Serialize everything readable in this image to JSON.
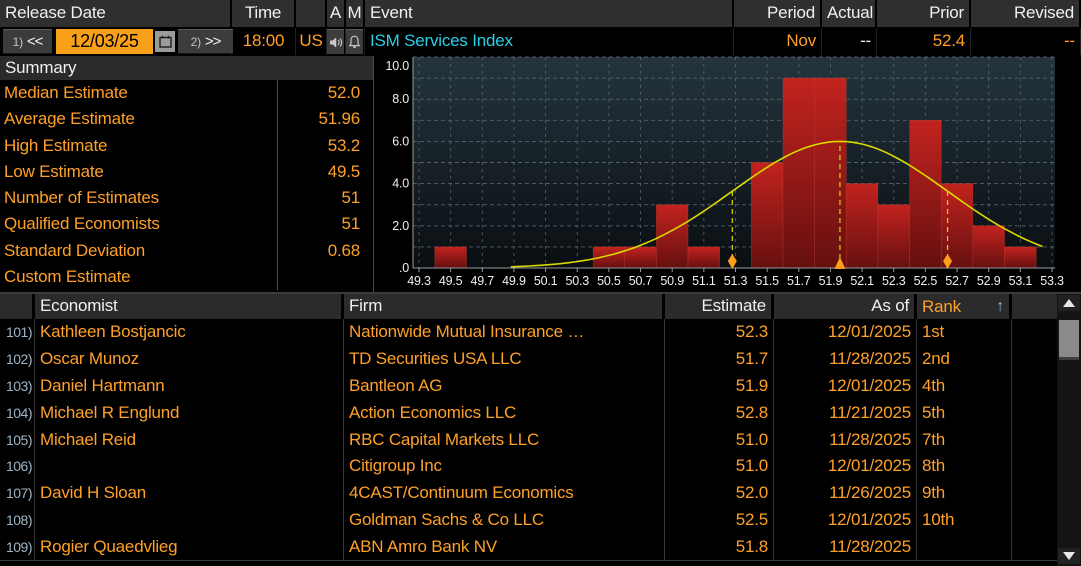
{
  "colors": {
    "orange": "#ffa028",
    "date_field_bg": "#f9a01b",
    "cyan": "#27d0e8",
    "row_number": "#9fb4c4",
    "header_bg": "#2f2f2f",
    "button_bg": "#3c3c3c",
    "bar_top": "#c2231e",
    "bar_bottom": "#661010",
    "curve_yellow": "#d9d900",
    "marker_orange": "#ff9f1b",
    "grid_gray": "#5f6d77",
    "plot_bg_top": "#24343e",
    "plot_bg_bottom": "#0a0e11",
    "axis_gray": "#959b9e"
  },
  "top": {
    "headers": {
      "release_date": "Release Date",
      "time": "Time",
      "a": "A",
      "m": "M",
      "event": "Event",
      "period": "Period",
      "actual": "Actual",
      "prior": "Prior",
      "revised": "Revised"
    },
    "nav": {
      "key1": "1)",
      "prev": "<<",
      "date": "12/03/25",
      "key2": "2)",
      "next": ">>"
    },
    "values": {
      "time": "18:00",
      "country": "US",
      "event": "ISM Services Index",
      "period": "Nov",
      "actual": "--",
      "prior": "52.4",
      "revised": "--"
    }
  },
  "summary": {
    "title": "Summary",
    "rows": [
      {
        "label": "Median Estimate",
        "value": "52.0"
      },
      {
        "label": "Average Estimate",
        "value": "51.96"
      },
      {
        "label": "High Estimate",
        "value": "53.2"
      },
      {
        "label": "Low Estimate",
        "value": "49.5"
      },
      {
        "label": "Number of Estimates",
        "value": "51"
      },
      {
        "label": "Qualified Economists",
        "value": "51"
      },
      {
        "label": "Standard Deviation",
        "value": "0.68"
      },
      {
        "label": "Custom Estimate",
        "value": ""
      }
    ]
  },
  "chart_data": {
    "type": "bar",
    "subtype": "histogram",
    "title": "Estimate distribution histogram",
    "xlim": [
      49.3,
      53.3
    ],
    "ylim": [
      0,
      10
    ],
    "bin_width": 0.2,
    "grid": "dashed",
    "x_ticks": [
      "49.3",
      "49.5",
      "49.7",
      "49.9",
      "50.1",
      "50.3",
      "50.5",
      "50.7",
      "50.9",
      "51.1",
      "51.3",
      "51.5",
      "51.7",
      "51.9",
      "52.1",
      "52.3",
      "52.5",
      "52.7",
      "52.9",
      "53.1",
      "53.3"
    ],
    "y_ticks": [
      {
        "label": "10.0",
        "value": 10
      },
      {
        "label": "8.0",
        "value": 8
      },
      {
        "label": "6.0",
        "value": 6
      },
      {
        "label": "4.0",
        "value": 4
      },
      {
        "label": "2.0",
        "value": 2
      },
      {
        "label": ".0",
        "value": 0
      }
    ],
    "bins": [
      {
        "x": 49.5,
        "count": 1
      },
      {
        "x": 50.5,
        "count": 1
      },
      {
        "x": 50.7,
        "count": 1
      },
      {
        "x": 50.9,
        "count": 3
      },
      {
        "x": 51.1,
        "count": 1
      },
      {
        "x": 51.5,
        "count": 5
      },
      {
        "x": 51.7,
        "count": 9
      },
      {
        "x": 51.9,
        "count": 9
      },
      {
        "x": 52.1,
        "count": 4
      },
      {
        "x": 52.3,
        "count": 3
      },
      {
        "x": 52.5,
        "count": 7
      },
      {
        "x": 52.7,
        "count": 4
      },
      {
        "x": 52.9,
        "count": 2
      },
      {
        "x": 53.1,
        "count": 1
      }
    ],
    "curve": {
      "shape": "normal",
      "mean": 51.96,
      "std": 0.68,
      "peak": 6,
      "x_start": 49.88,
      "x_end": 53.26
    },
    "markers": [
      {
        "x": 51.28,
        "shape": "diamond"
      },
      {
        "x": 51.96,
        "shape": "triangle"
      },
      {
        "x": 52.64,
        "shape": "diamond"
      }
    ]
  },
  "table": {
    "headers": {
      "economist": "Economist",
      "firm": "Firm",
      "estimate": "Estimate",
      "asof": "As of",
      "rank": "Rank",
      "sort_arrow": "↑"
    },
    "rows": [
      {
        "num": "101)",
        "economist": "Kathleen Bostjancic",
        "firm": "Nationwide Mutual Insurance …",
        "estimate": "52.3",
        "asof": "12/01/2025",
        "rank": "1st"
      },
      {
        "num": "102)",
        "economist": "Oscar Munoz",
        "firm": "TD Securities USA LLC",
        "estimate": "51.7",
        "asof": "11/28/2025",
        "rank": "2nd"
      },
      {
        "num": "103)",
        "economist": "Daniel Hartmann",
        "firm": "Bantleon AG",
        "estimate": "51.9",
        "asof": "12/01/2025",
        "rank": "4th"
      },
      {
        "num": "104)",
        "economist": "Michael R Englund",
        "firm": "Action Economics LLC",
        "estimate": "52.8",
        "asof": "11/21/2025",
        "rank": "5th"
      },
      {
        "num": "105)",
        "economist": "Michael Reid",
        "firm": "RBC Capital Markets LLC",
        "estimate": "51.0",
        "asof": "11/28/2025",
        "rank": "7th"
      },
      {
        "num": "106)",
        "economist": "",
        "firm": "Citigroup Inc",
        "estimate": "51.0",
        "asof": "12/01/2025",
        "rank": "8th"
      },
      {
        "num": "107)",
        "economist": "David H Sloan",
        "firm": "4CAST/Continuum Economics",
        "estimate": "52.0",
        "asof": "11/26/2025",
        "rank": "9th"
      },
      {
        "num": "108)",
        "economist": "",
        "firm": "Goldman Sachs & Co LLC",
        "estimate": "52.5",
        "asof": "12/01/2025",
        "rank": "10th"
      },
      {
        "num": "109)",
        "economist": "Rogier Quaedvlieg",
        "firm": "ABN Amro Bank NV",
        "estimate": "51.8",
        "asof": "11/28/2025",
        "rank": ""
      }
    ]
  }
}
